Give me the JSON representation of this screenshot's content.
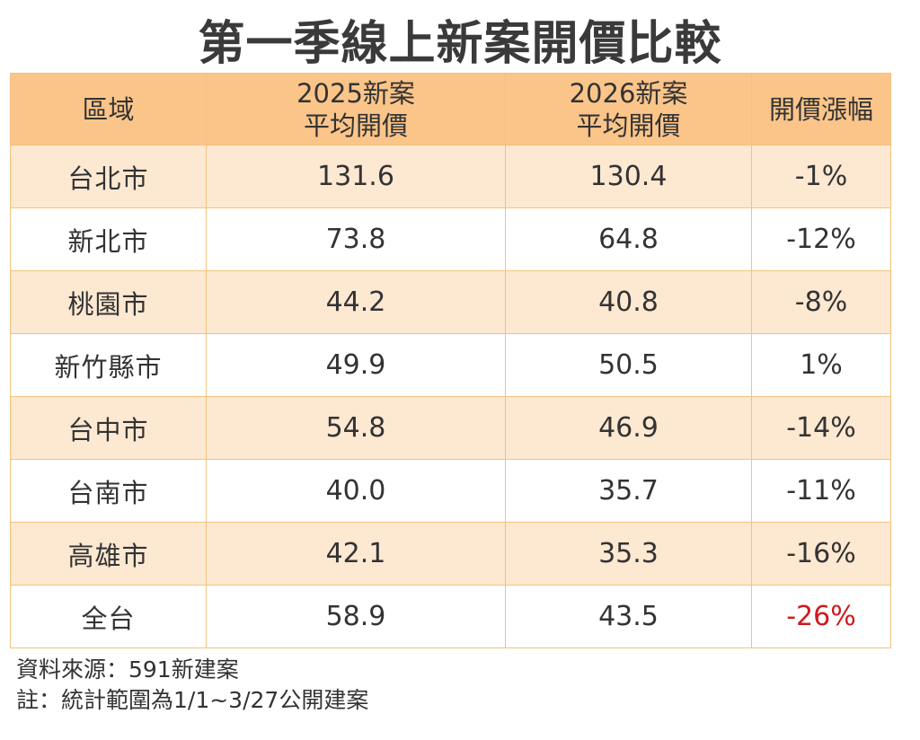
{
  "chart_data": {
    "type": "table",
    "title": "第一季線上新案開價比較",
    "columns": [
      {
        "line1": "區域",
        "line2": ""
      },
      {
        "line1": "2025新案",
        "line2": "平均開價"
      },
      {
        "line1": "2026新案",
        "line2": "平均開價"
      },
      {
        "line1": "開價漲幅",
        "line2": ""
      }
    ],
    "rows": [
      {
        "region": "台北市",
        "price_2025": "131.6",
        "price_2026": "130.4",
        "change": "-1%"
      },
      {
        "region": "新北市",
        "price_2025": "73.8",
        "price_2026": "64.8",
        "change": "-12%"
      },
      {
        "region": "桃園市",
        "price_2025": "44.2",
        "price_2026": "40.8",
        "change": "-8%"
      },
      {
        "region": "新竹縣市",
        "price_2025": "49.9",
        "price_2026": "50.5",
        "change": "1%"
      },
      {
        "region": "台中市",
        "price_2025": "54.8",
        "price_2026": "46.9",
        "change": "-14%"
      },
      {
        "region": "台南市",
        "price_2025": "40.0",
        "price_2026": "35.7",
        "change": "-11%"
      },
      {
        "region": "高雄市",
        "price_2025": "42.1",
        "price_2026": "35.3",
        "change": "-16%"
      },
      {
        "region": "全台",
        "price_2025": "58.9",
        "price_2026": "43.5",
        "change": "-26%",
        "highlight": true
      }
    ],
    "highlight_color": "#d0191c",
    "header_color": "#fbc58a",
    "stripe_color": "#fde8d2"
  },
  "footnotes": {
    "source": "資料來源：591新建案",
    "note": "註：統計範圍為1/1~3/27公開建案"
  }
}
